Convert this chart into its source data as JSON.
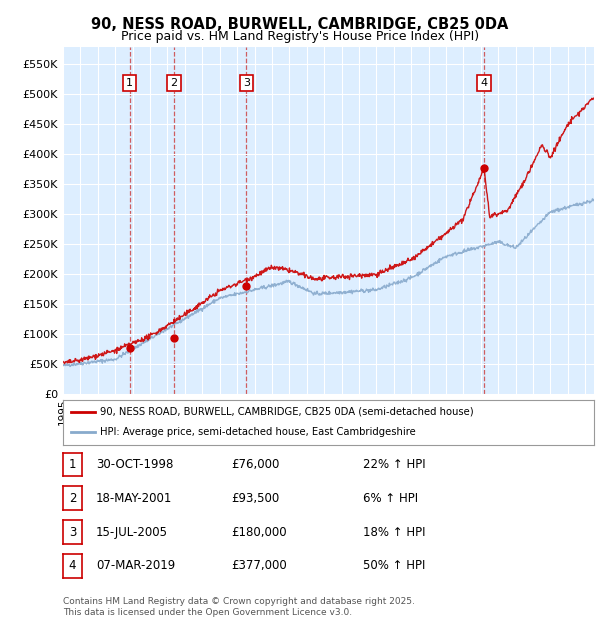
{
  "title_line1": "90, NESS ROAD, BURWELL, CAMBRIDGE, CB25 0DA",
  "title_line2": "Price paid vs. HM Land Registry's House Price Index (HPI)",
  "ylim": [
    0,
    580000
  ],
  "yticks": [
    0,
    50000,
    100000,
    150000,
    200000,
    250000,
    300000,
    350000,
    400000,
    450000,
    500000,
    550000
  ],
  "ytick_labels": [
    "£0",
    "£50K",
    "£100K",
    "£150K",
    "£200K",
    "£250K",
    "£300K",
    "£350K",
    "£400K",
    "£450K",
    "£500K",
    "£550K"
  ],
  "plot_bg_color": "#ddeeff",
  "grid_color": "#ffffff",
  "red_line_color": "#cc0000",
  "blue_line_color": "#88aacc",
  "vline_color": "#cc4444",
  "legend_label_red": "90, NESS ROAD, BURWELL, CAMBRIDGE, CB25 0DA (semi-detached house)",
  "legend_label_blue": "HPI: Average price, semi-detached house, East Cambridgeshire",
  "transactions": [
    {
      "num": 1,
      "date_str": "30-OCT-1998",
      "year": 1998.83,
      "price": 76000,
      "pct": "22%",
      "dir": "↑"
    },
    {
      "num": 2,
      "date_str": "18-MAY-2001",
      "year": 2001.38,
      "price": 93500,
      "pct": "6%",
      "dir": "↑"
    },
    {
      "num": 3,
      "date_str": "15-JUL-2005",
      "year": 2005.54,
      "price": 180000,
      "pct": "18%",
      "dir": "↑"
    },
    {
      "num": 4,
      "date_str": "07-MAR-2019",
      "year": 2019.18,
      "price": 377000,
      "pct": "50%",
      "dir": "↑"
    }
  ],
  "footnote_line1": "Contains HM Land Registry data © Crown copyright and database right 2025.",
  "footnote_line2": "This data is licensed under the Open Government Licence v3.0.",
  "xmin": 1995.0,
  "xmax": 2025.5
}
